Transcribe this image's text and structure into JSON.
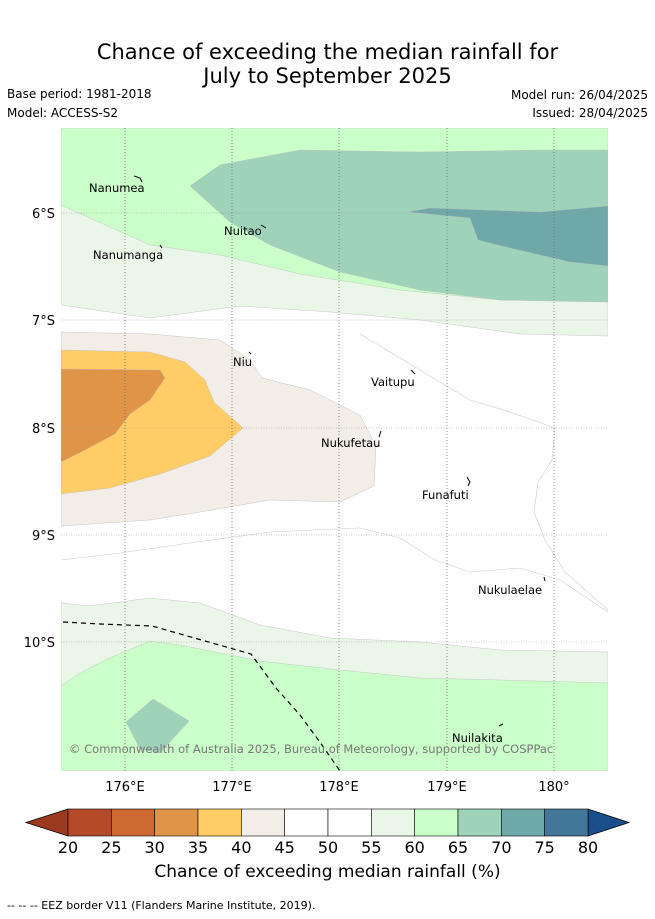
{
  "title": {
    "line1": "Chance of exceeding the median rainfall for",
    "line2": "July to September 2025"
  },
  "meta": {
    "base_period": "Base period: 1981-2018",
    "model": "Model: ACCESS-S2",
    "model_run": "Model run: 26/04/2025",
    "issued": "Issued: 28/04/2025"
  },
  "map": {
    "lat_ticks": [
      "6°S",
      "7°S",
      "8°S",
      "9°S",
      "10°S"
    ],
    "lon_ticks": [
      "176°E",
      "177°E",
      "178°E",
      "179°E",
      "180°"
    ],
    "places": [
      "Nanumea",
      "Nuitao",
      "Nanumanga",
      "Niu",
      "Vaitupu",
      "Nukufetau",
      "Funafuti",
      "Nukulaelae",
      "Nuilakita"
    ],
    "copyright": "© Commonwealth of Australia 2025, Bureau of Meteorology, supported by COSPPac"
  },
  "colorbar": {
    "ticks": [
      "20",
      "25",
      "30",
      "35",
      "40",
      "45",
      "50",
      "55",
      "60",
      "65",
      "70",
      "75",
      "80"
    ],
    "colors": [
      "#b44a28",
      "#cf6932",
      "#e09448",
      "#ffcc66",
      "#f2ede6",
      "#ffffff",
      "#ffffff",
      "#eaf6e8",
      "#caffca",
      "#9ed3ba",
      "#6fa8a8",
      "#42779a"
    ],
    "under_color": "#9c3a20",
    "over_color": "#1a4e8a",
    "label": "Chance of exceeding median rainfall (%)"
  },
  "footer": "--  --  -- EEZ border V11 (Flanders Marine Institute, 2019)."
}
